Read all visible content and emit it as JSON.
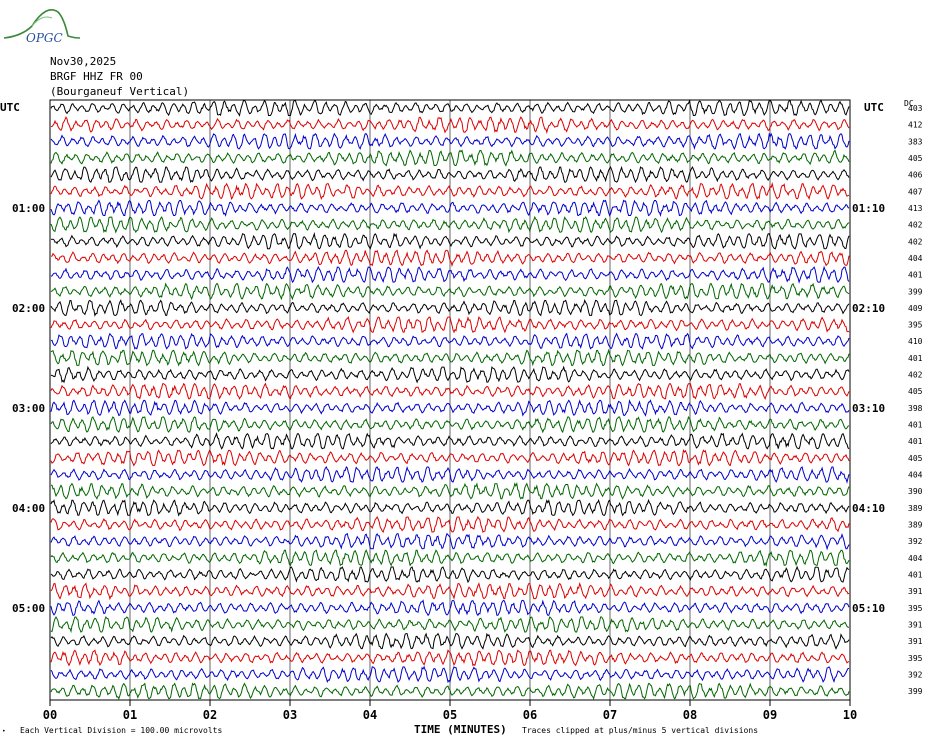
{
  "header": {
    "logo_text": "OPGC",
    "date": "Nov30,2025",
    "station": "BRGF HHZ FR 00",
    "location": "(Bourganeuf Vertical)"
  },
  "footer": {
    "scale_note": "Each Vertical Division =  100.00 microvolts",
    "clip_note": "Traces clipped at plus/minus 5 vertical divisions"
  },
  "colors": {
    "traces": [
      "#000000",
      "#dd0000",
      "#0000cc",
      "#006600"
    ],
    "grid": "#000000",
    "background": "#ffffff"
  },
  "chart_data": {
    "type": "line",
    "xlabel": "TIME (MINUTES)",
    "ylabel_left": "UTC",
    "ylabel_right": "UTC",
    "dc_label": "DC",
    "x_ticks": [
      "00",
      "01",
      "02",
      "03",
      "04",
      "05",
      "06",
      "07",
      "08",
      "09",
      "10"
    ],
    "xlim": [
      0,
      10
    ],
    "left_hour_labels": [
      {
        "row": 6,
        "label": "01:00"
      },
      {
        "row": 12,
        "label": "02:00"
      },
      {
        "row": 18,
        "label": "03:00"
      },
      {
        "row": 24,
        "label": "04:00"
      },
      {
        "row": 30,
        "label": "05:00"
      }
    ],
    "right_hour_labels": [
      {
        "row": 6,
        "label": "01:10"
      },
      {
        "row": 12,
        "label": "02:10"
      },
      {
        "row": 18,
        "label": "03:10"
      },
      {
        "row": 24,
        "label": "04:10"
      },
      {
        "row": 30,
        "label": "05:10"
      }
    ],
    "trace_count": 36,
    "dc_values": [
      "403",
      "412",
      "383",
      "405",
      "406",
      "407",
      "413",
      "402",
      "402",
      "404",
      "401",
      "399",
      "409",
      "395",
      "410",
      "401",
      "402",
      "405",
      "398",
      "401",
      "401",
      "405",
      "404",
      "390",
      "389",
      "389",
      "392",
      "404",
      "401",
      "391",
      "395",
      "391",
      "391",
      "395",
      "392",
      "399"
    ]
  }
}
